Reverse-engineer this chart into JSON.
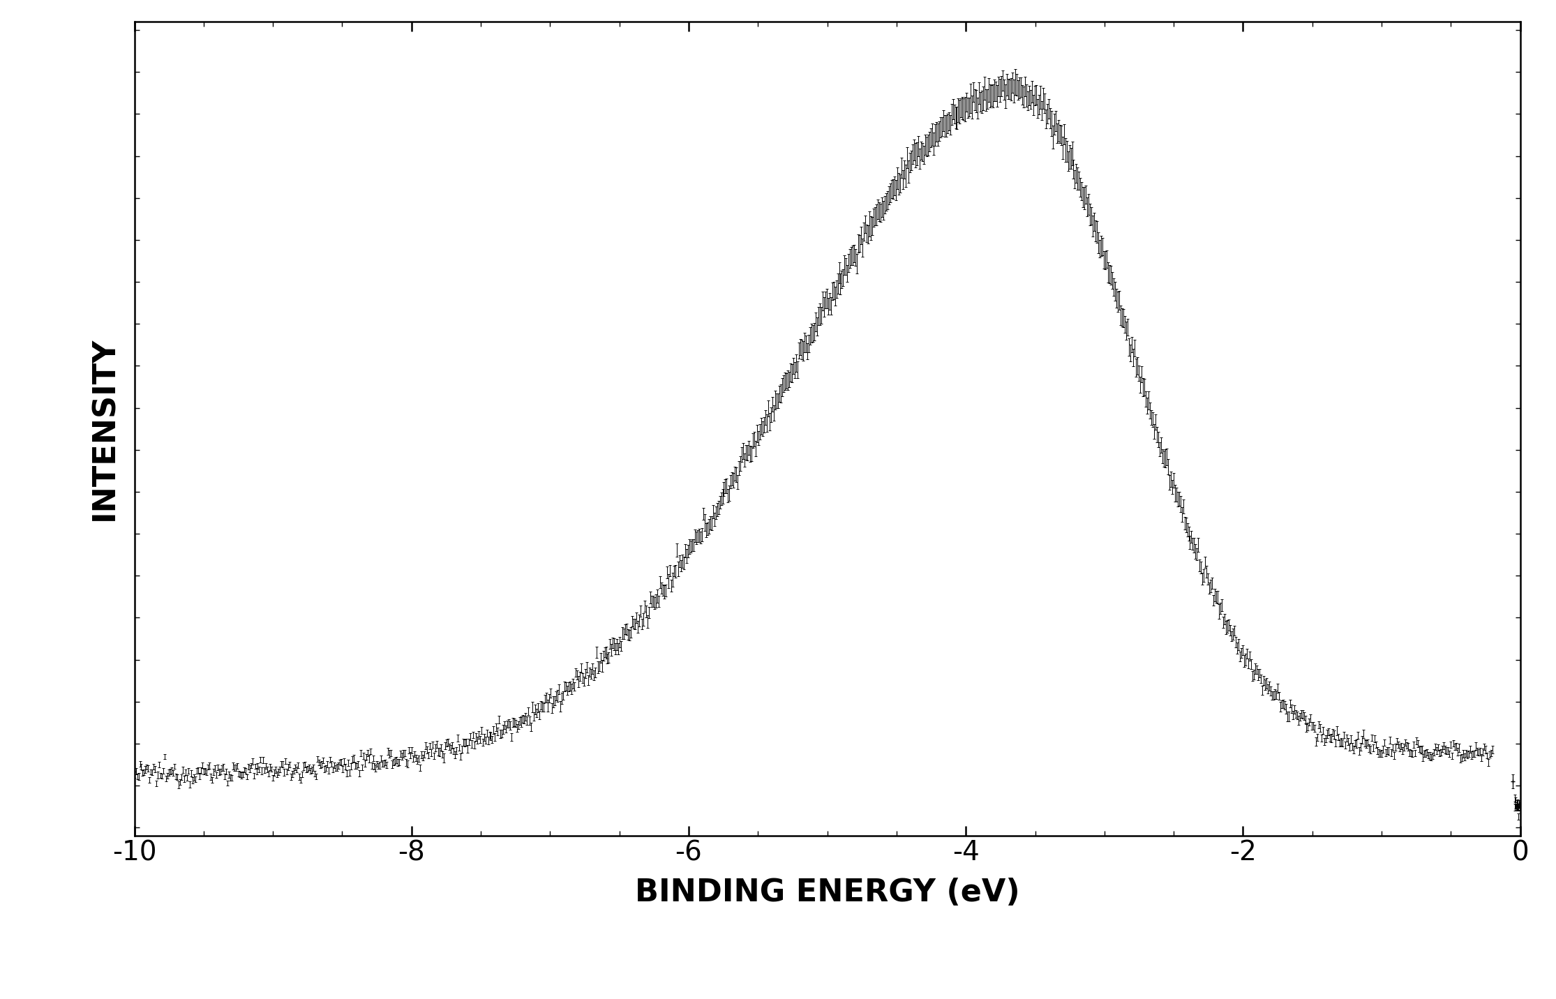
{
  "xlabel": "BINDING ENERGY (eV)",
  "ylabel": "INTENSITY",
  "xlim": [
    -10,
    0
  ],
  "x_ticks": [
    -10,
    -8,
    -6,
    -4,
    -2,
    0
  ],
  "background_color": "#ffffff",
  "line_color": "#000000",
  "errorbar_color": "#000000",
  "linewidth": 0.8,
  "xlabel_fontsize": 32,
  "ylabel_fontsize": 32,
  "tick_fontsize": 28,
  "figsize": [
    22.3,
    14.32
  ],
  "dpi": 100,
  "n_points": 1000,
  "noise_scale": 0.006,
  "error_scale": 0.004
}
